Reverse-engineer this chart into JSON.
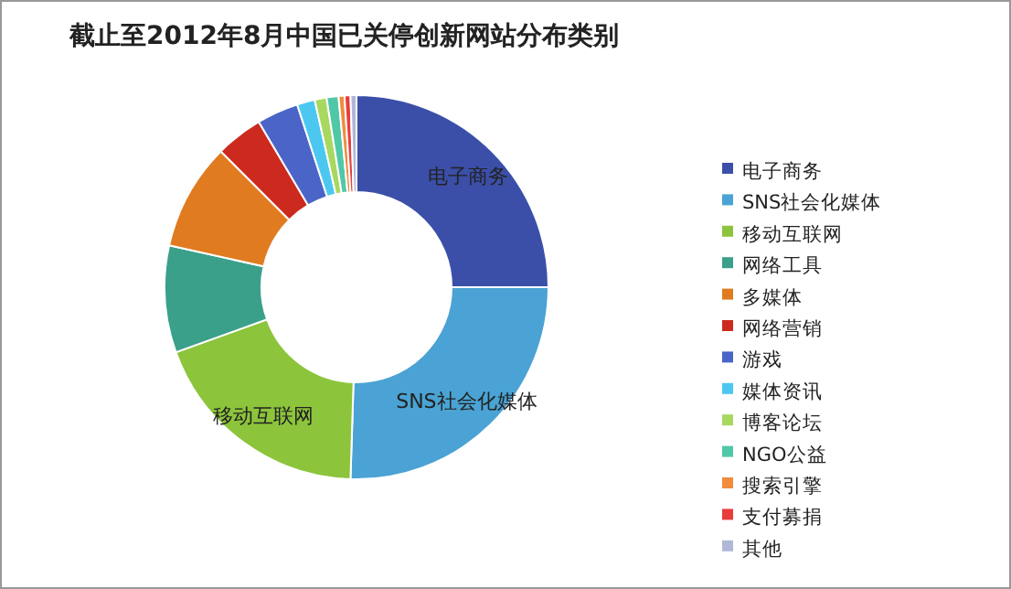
{
  "chart_data": {
    "type": "donut",
    "title": "截止至2012年8月中国已关停创新网站分布类别",
    "categories": [
      "电子商务",
      "SNS社会化媒体",
      "移动互联网",
      "网络工具",
      "多媒体",
      "网络营销",
      "游戏",
      "媒体资讯",
      "博客论坛",
      "NGO公益",
      "搜索引擎",
      "支付募捐",
      "其他"
    ],
    "values": [
      25,
      25.5,
      19,
      9,
      9,
      4,
      3.5,
      1.5,
      1,
      1,
      0.5,
      0.5,
      0.5
    ],
    "colors": [
      "#3b4fa8",
      "#4aa3d4",
      "#8cc43c",
      "#3aa08a",
      "#e07b20",
      "#cc2a1e",
      "#4a64c8",
      "#4cc8f0",
      "#a8d860",
      "#50c8a8",
      "#f08c3c",
      "#e83c3c",
      "#b0b8d8"
    ],
    "annotations": [
      {
        "text": "电子商务",
        "x": "电子商务"
      },
      {
        "text": "SNS社会化媒体",
        "x": "SNS社会化媒体"
      },
      {
        "text": "移动互联网",
        "x": "移动互联网"
      }
    ],
    "legend": "right"
  }
}
